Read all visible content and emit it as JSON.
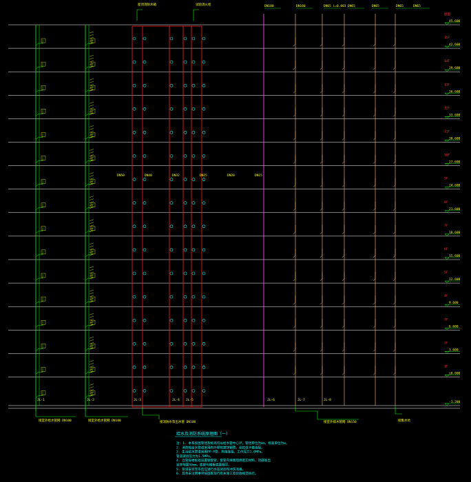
{
  "title": "给水及消防系统原理图（一）",
  "notes": [
    "注：1. 本系统图管径及标高均以给水管中心计，管径单位为mm，标高单位为m。",
    "     2. 消防栓给水管道采用内外壁热镀锌钢管，丝扣或卡箍连接。",
    "     3. 生活给水管道采用PP-R管，热熔连接，工作压力1.0MPa。",
    "        管道试验压力为1.5MPa。",
    "     4. 立管穿楼板处设置钢套管，套管内填塞阻燃密实材料，顶部高出",
    "        装饰地面50mm，底部与楼板底面相平。",
    "     5. 管道安装完毕后应进行水压试验和冲洗消毒。",
    "     6. 其余未注明事项按国家现行有关施工及验收规范执行。"
  ],
  "floor_levels": [
    "45.600",
    "42.600",
    "39.600",
    "36.600",
    "33.600",
    "30.600",
    "27.600",
    "24.600",
    "21.600",
    "18.600",
    "15.600",
    "12.600",
    "9.600",
    "6.600",
    "3.600",
    "±0.000",
    "-1.200"
  ],
  "floor_numbers": [
    "屋面",
    "15F",
    "14F",
    "13F",
    "12F",
    "11F",
    "10F",
    "9F",
    "8F",
    "7F",
    "6F",
    "5F",
    "4F",
    "3F",
    "2F",
    "1F",
    ""
  ],
  "riser_labels": [
    "JL-1",
    "JL-2",
    "JL-3",
    "JL-4",
    "JL-5",
    "JL-6",
    "JL-7",
    "JL-8"
  ],
  "top_labels": [
    "DN100",
    "DN100",
    "DN65 i=0.003",
    "DN65",
    "DN65",
    "DN65",
    "DN65"
  ],
  "fire_labels": [
    "屋顶消防水箱",
    "试验消火栓"
  ],
  "zone_labels": [
    "DN50",
    "DN40",
    "DN32",
    "DN25",
    "DN20",
    "DN15"
  ],
  "bottom_labels": [
    "接室外给水管网 DN100",
    "接室外给水管网 DN100",
    "接消防水泵出水管 DN100",
    "接室外排水管网 DN150",
    "接集水坑"
  ],
  "colors": {
    "background": "#000000",
    "floor_line": "#ffffff",
    "water_supply": "#00ff00",
    "fire_pipe": "#ff2020",
    "cyan": "#00ffff",
    "drain": "#ffc080",
    "magenta": "#ff40ff",
    "label": "#ffff00",
    "level_mark": "#00ff00",
    "red_mark": "#ff3030"
  }
}
